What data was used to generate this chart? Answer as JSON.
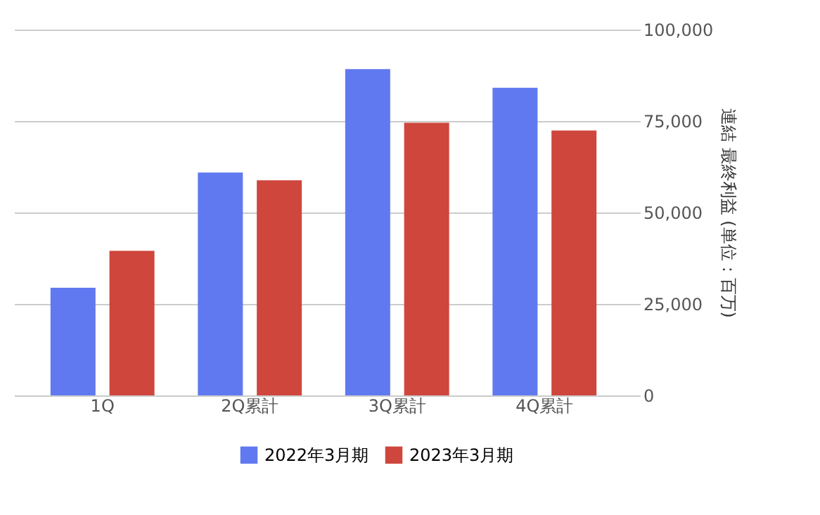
{
  "chart_data": {
    "type": "bar",
    "categories": [
      "1Q",
      "2Q累計",
      "3Q累計",
      "4Q累計"
    ],
    "ylabel": "連結 最終利益 (単位：百万)",
    "series": [
      {
        "name": "2022年3月期",
        "color": "#6079f0",
        "values": [
          29400,
          60900,
          89200,
          84100
        ]
      },
      {
        "name": "2023年3月期",
        "color": "#cf463c",
        "values": [
          39500,
          58800,
          74500,
          72400
        ]
      }
    ],
    "ylim": [
      0,
      100000
    ],
    "yticks": [
      0,
      {
        "value": 25000,
        "label": "25,000"
      },
      {
        "value": 50000,
        "label": "50,000"
      },
      {
        "value": 75000,
        "label": "75,000"
      },
      {
        "value": 100000,
        "label": "100,000"
      }
    ],
    "grid": "y",
    "legend": "bottom"
  }
}
